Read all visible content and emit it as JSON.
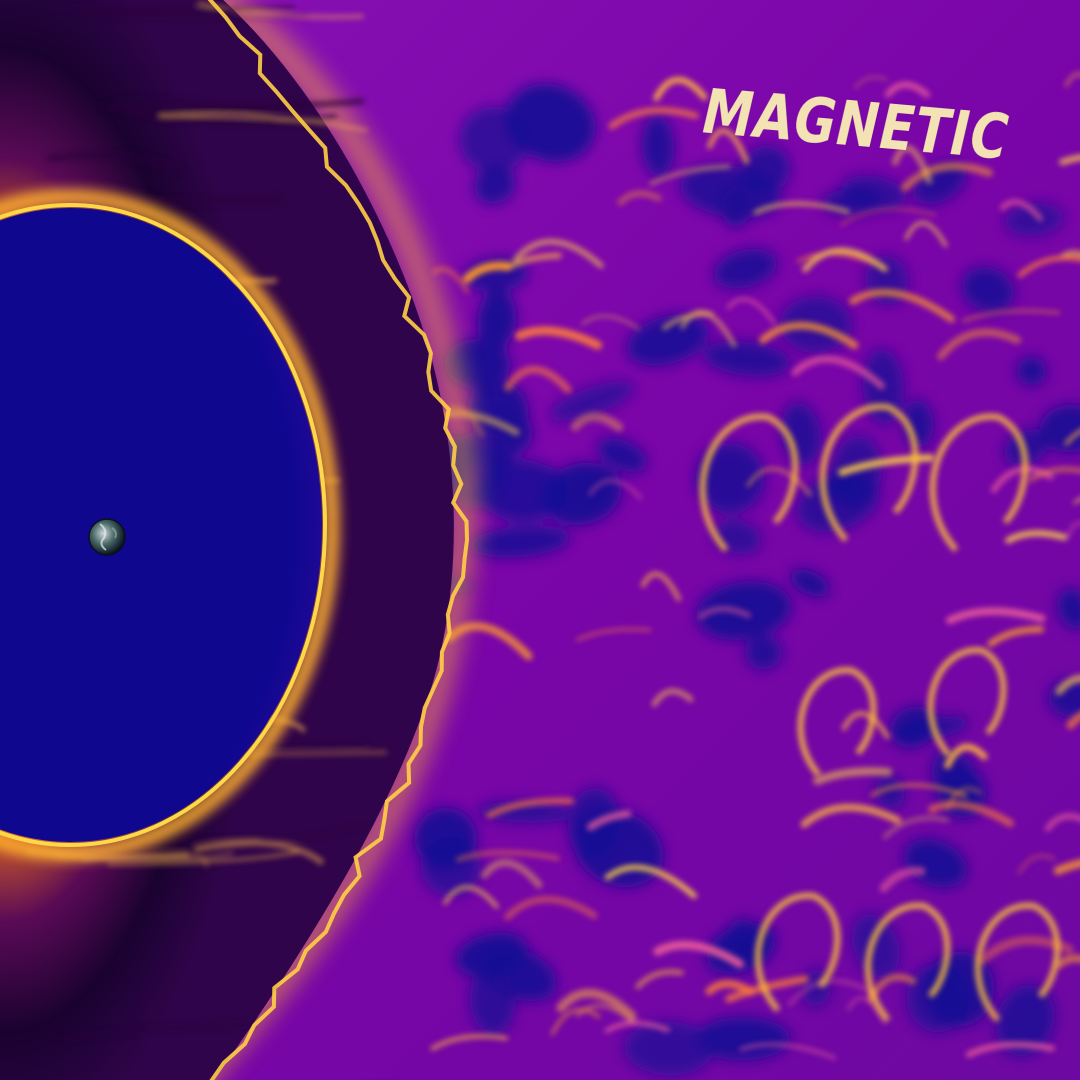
{
  "title": "MAGNETIC",
  "colors": {
    "background": "#7a05a8",
    "cavity": "#10078f",
    "glow_bright": "#ffd84a",
    "glow_mid": "#ff8a1e",
    "glow_pink": "#d94a8c",
    "sheath_dark": "#1a0230",
    "text": "#f3e2b3"
  },
  "icons": {
    "planet": "earth-globe-icon"
  }
}
